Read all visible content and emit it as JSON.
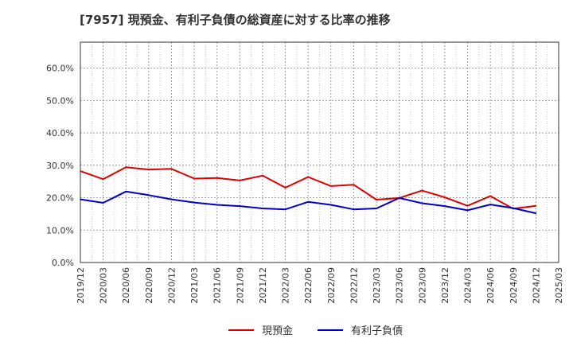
{
  "chart_data": {
    "type": "line",
    "title": "[7957]  現預金、有利子負債の総資産に対する比率の推移",
    "xlabel": "",
    "ylabel": "",
    "ylim": [
      0,
      0.68
    ],
    "yticks": [
      0,
      0.1,
      0.2,
      0.3,
      0.4,
      0.5,
      0.6
    ],
    "ytick_labels": [
      "0.0%",
      "10.0%",
      "20.0%",
      "30.0%",
      "40.0%",
      "50.0%",
      "60.0%"
    ],
    "categories": [
      "2019/12",
      "2020/03",
      "2020/06",
      "2020/09",
      "2020/12",
      "2021/03",
      "2021/06",
      "2021/09",
      "2021/12",
      "2022/03",
      "2022/06",
      "2022/09",
      "2022/12",
      "2023/03",
      "2023/06",
      "2023/09",
      "2023/12",
      "2024/03",
      "2024/06",
      "2024/09",
      "2024/12",
      "2025/03"
    ],
    "grid": true,
    "legend_position": "bottom",
    "series": [
      {
        "name": "現預金",
        "color": "#dd0000",
        "values": [
          0.282,
          0.257,
          0.294,
          0.287,
          0.289,
          0.259,
          0.261,
          0.253,
          0.268,
          0.231,
          0.264,
          0.236,
          0.24,
          0.194,
          0.199,
          0.222,
          0.201,
          0.175,
          0.205,
          0.166,
          0.175,
          null
        ]
      },
      {
        "name": "有利子負債",
        "color": "#0000cc",
        "values": [
          0.195,
          0.184,
          0.219,
          0.208,
          0.195,
          0.185,
          0.178,
          0.174,
          0.167,
          0.164,
          0.187,
          0.178,
          0.164,
          0.167,
          0.199,
          0.183,
          0.174,
          0.161,
          0.179,
          0.168,
          0.152,
          null
        ]
      }
    ]
  }
}
